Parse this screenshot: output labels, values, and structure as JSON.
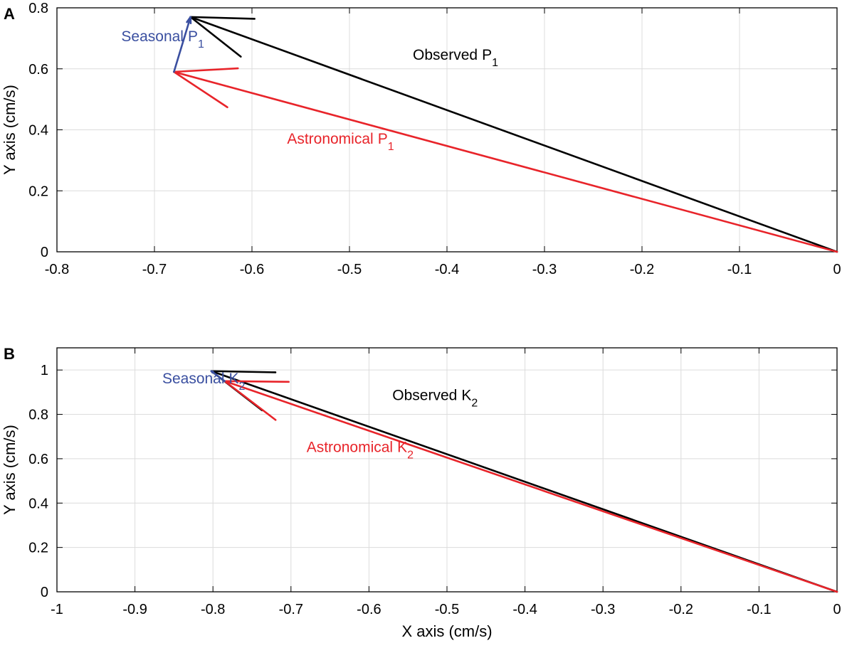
{
  "colors": {
    "observed": "#000000",
    "astronomical": "#e8242a",
    "seasonal": "#3a4fa0",
    "grid": "#dcdcdc",
    "axis": "#000000"
  },
  "chart_data": [
    {
      "type": "vector",
      "panel_label": "A",
      "ylabel": "Y axis (cm/s)",
      "xlabel": "",
      "xlim": [
        -0.8,
        0
      ],
      "ylim": [
        0,
        0.8
      ],
      "xticks": [
        "-0.8",
        "-0.7",
        "-0.6",
        "-0.5",
        "-0.4",
        "-0.3",
        "-0.2",
        "-0.1",
        "0"
      ],
      "yticks": [
        "0",
        "0.2",
        "0.4",
        "0.6",
        "0.8"
      ],
      "grid": true,
      "vectors": [
        {
          "name": "Observed",
          "sub": "1",
          "prefix": "P",
          "color_key": "observed",
          "from": [
            0,
            0
          ],
          "to": [
            -0.663,
            0.77
          ],
          "label_at": [
            -0.435,
            0.63
          ]
        },
        {
          "name": "Astronomical",
          "sub": "1",
          "prefix": "P",
          "color_key": "astronomical",
          "from": [
            0,
            0
          ],
          "to": [
            -0.68,
            0.59
          ],
          "label_at": [
            -0.564,
            0.355
          ]
        },
        {
          "name": "Seasonal",
          "sub": "1",
          "prefix": "P",
          "color_key": "seasonal",
          "from": [
            -0.68,
            0.59
          ],
          "to": [
            -0.663,
            0.77
          ],
          "label_at": [
            -0.734,
            0.69
          ]
        }
      ]
    },
    {
      "type": "vector",
      "panel_label": "B",
      "ylabel": "Y axis (cm/s)",
      "xlabel": "X axis (cm/s)",
      "xlim": [
        -1,
        0
      ],
      "ylim": [
        0,
        1.1
      ],
      "xticks": [
        "-1",
        "-0.9",
        "-0.8",
        "-0.7",
        "-0.6",
        "-0.5",
        "-0.4",
        "-0.3",
        "-0.2",
        "-0.1",
        "0"
      ],
      "yticks": [
        "0",
        "0.2",
        "0.4",
        "0.6",
        "0.8",
        "1"
      ],
      "grid": true,
      "vectors": [
        {
          "name": "Observed",
          "sub": "2",
          "prefix": "K",
          "color_key": "observed",
          "from": [
            0,
            0
          ],
          "to": [
            -0.802,
            0.995
          ],
          "label_at": [
            -0.57,
            0.865
          ]
        },
        {
          "name": "Astronomical",
          "sub": "2",
          "prefix": "K",
          "color_key": "astronomical",
          "from": [
            0,
            0
          ],
          "to": [
            -0.785,
            0.95
          ],
          "label_at": [
            -0.68,
            0.63
          ]
        },
        {
          "name": "Seasonal",
          "sub": "2",
          "prefix": "K",
          "color_key": "seasonal",
          "from": [
            -0.785,
            0.95
          ],
          "to": [
            -0.802,
            0.995
          ],
          "label_at": [
            -0.865,
            0.94
          ]
        }
      ]
    }
  ]
}
